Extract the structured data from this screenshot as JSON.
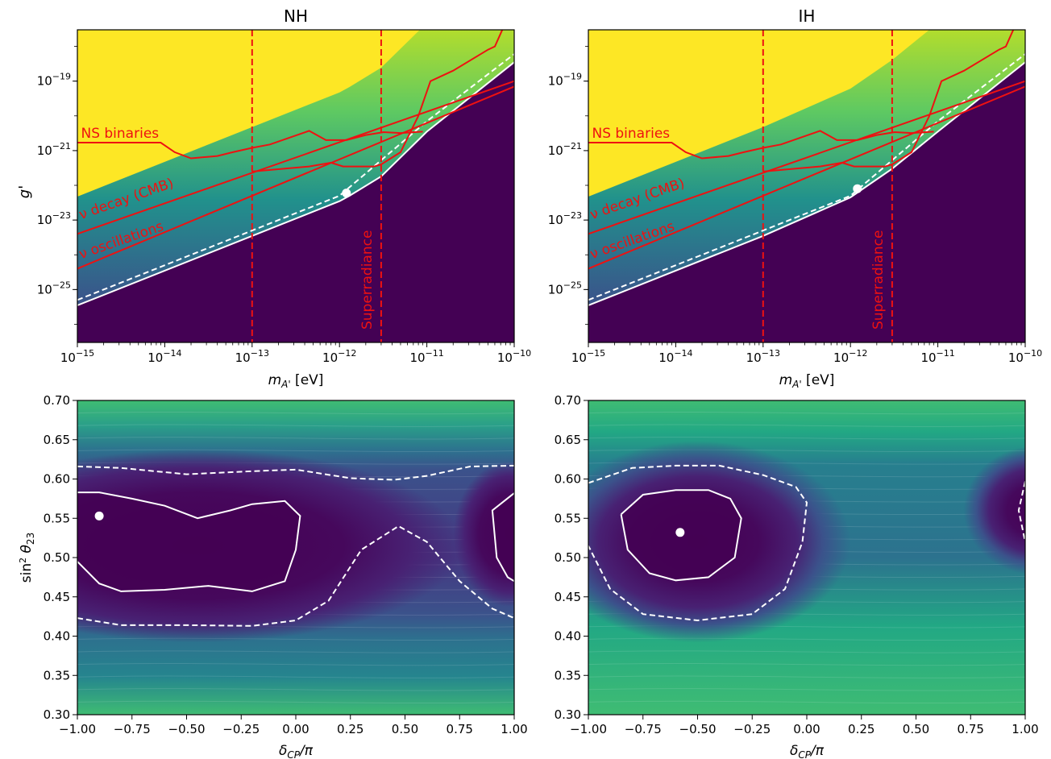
{
  "colors": {
    "yellow": "#fde725",
    "dark_purple": "#440154",
    "red": "#ee1111",
    "white": "#ffffff"
  },
  "chart_data": [
    {
      "type": "heatmap",
      "title": "NH",
      "xlabel": "m_A' [eV]",
      "ylabel": "g'",
      "xscale": "log",
      "yscale": "log",
      "xlim": [
        1e-15,
        1e-10
      ],
      "ylim": [
        3e-27,
        3e-18
      ],
      "xtick_labels": [
        "10^-15",
        "10^-14",
        "10^-13",
        "10^-12",
        "10^-11",
        "10^-10"
      ],
      "ytick_labels": [
        "10^-19",
        "10^-21",
        "10^-23",
        "10^-25"
      ],
      "boundary_solid": [
        [
          1e-15,
          3.5e-26
        ],
        [
          1e-13,
          3.5e-24
        ],
        [
          1e-12,
          3.5e-23
        ],
        [
          1.3e-12,
          5e-23
        ],
        [
          3e-12,
          1.8e-22
        ],
        [
          1e-11,
          3.5e-21
        ],
        [
          1e-10,
          3.5e-19
        ]
      ],
      "boundary_dashed": [
        [
          1e-15,
          5e-26
        ],
        [
          1e-13,
          5e-24
        ],
        [
          1e-12,
          5e-23
        ],
        [
          1e-11,
          7e-21
        ],
        [
          1e-10,
          6e-19
        ]
      ],
      "best_fit": [
        1.2e-12,
        6e-23
      ],
      "constraints": [
        {
          "label": "NS binaries",
          "points": [
            [
              1e-15,
              1.7e-21
            ],
            [
              9e-15,
              1.7e-21
            ],
            [
              1.3e-14,
              9e-22
            ],
            [
              2e-14,
              6e-22
            ],
            [
              4e-14,
              7e-22
            ],
            [
              6e-14,
              9e-22
            ],
            [
              1e-13,
              1.2e-21
            ],
            [
              1.6e-13,
              1.5e-21
            ],
            [
              4.5e-13,
              3.7e-21
            ],
            [
              7e-13,
              2e-21
            ],
            [
              1.2e-12,
              2e-21
            ],
            [
              2e-12,
              2.8e-21
            ],
            [
              3.2e-12,
              3.4e-21
            ],
            [
              5e-12,
              3.2e-21
            ],
            [
              9e-12,
              3.5e-21
            ]
          ]
        },
        {
          "label": "ν decay (CMB)",
          "points": [
            [
              1e-15,
              4e-24
            ],
            [
              1e-10,
              1e-19
            ]
          ]
        },
        {
          "label": "ν oscillations",
          "points": [
            [
              1e-15,
              4e-25
            ],
            [
              1e-10,
              7e-20
            ]
          ]
        },
        {
          "label": "",
          "points": [
            [
              1e-13,
              2.5e-22
            ],
            [
              4.5e-13,
              3.5e-22
            ],
            [
              8e-13,
              4.5e-22
            ],
            [
              1.1e-12,
              3.5e-22
            ],
            [
              1.7e-12,
              3.5e-22
            ],
            [
              2.5e-12,
              3.5e-22
            ],
            [
              3e-12,
              4e-22
            ],
            [
              5e-12,
              9e-22
            ],
            [
              8e-12,
              1e-20
            ],
            [
              1.1e-11,
              1e-19
            ],
            [
              2e-11,
              2e-19
            ],
            [
              5e-11,
              8e-19
            ],
            [
              6e-11,
              1e-18
            ],
            [
              8e-11,
              5e-18
            ]
          ]
        }
      ],
      "vertical_lines": [
        1e-13,
        3e-12
      ],
      "vertical_label": "Superradiance"
    },
    {
      "type": "heatmap",
      "title": "IH",
      "xlabel": "m_A' [eV]",
      "ylabel": "",
      "xscale": "log",
      "yscale": "log",
      "xlim": [
        1e-15,
        1e-10
      ],
      "ylim": [
        3e-27,
        3e-18
      ],
      "xtick_labels": [
        "10^-15",
        "10^-14",
        "10^-13",
        "10^-12",
        "10^-11",
        "10^-10"
      ],
      "ytick_labels": [
        "10^-19",
        "10^-21",
        "10^-23",
        "10^-25"
      ],
      "boundary_solid": [
        [
          1e-15,
          3.5e-26
        ],
        [
          1e-13,
          3.5e-24
        ],
        [
          1e-12,
          4.5e-23
        ],
        [
          3e-12,
          3e-22
        ],
        [
          1e-11,
          3.5e-21
        ],
        [
          1e-10,
          3.5e-19
        ]
      ],
      "boundary_dashed": [
        [
          1e-15,
          5e-26
        ],
        [
          1e-13,
          5e-24
        ],
        [
          1e-12,
          5e-23
        ],
        [
          1e-11,
          7e-21
        ],
        [
          1e-10,
          6e-19
        ]
      ],
      "best_fit": [
        1.2e-12,
        8e-23
      ],
      "constraints": [
        {
          "label": "NS binaries",
          "points": [
            [
              1e-15,
              1.7e-21
            ],
            [
              9e-15,
              1.7e-21
            ],
            [
              1.3e-14,
              9e-22
            ],
            [
              2e-14,
              6e-22
            ],
            [
              4e-14,
              7e-22
            ],
            [
              6e-14,
              9e-22
            ],
            [
              1e-13,
              1.2e-21
            ],
            [
              1.6e-13,
              1.5e-21
            ],
            [
              4.5e-13,
              3.7e-21
            ],
            [
              7e-13,
              2e-21
            ],
            [
              1.2e-12,
              2e-21
            ],
            [
              2e-12,
              2.8e-21
            ],
            [
              3.2e-12,
              3.4e-21
            ],
            [
              5e-12,
              3.2e-21
            ],
            [
              9e-12,
              3.5e-21
            ]
          ]
        },
        {
          "label": "ν decay (CMB)",
          "points": [
            [
              1e-15,
              4e-24
            ],
            [
              1e-10,
              1e-19
            ]
          ]
        },
        {
          "label": "ν oscillations",
          "points": [
            [
              1e-15,
              4e-25
            ],
            [
              1e-10,
              7e-20
            ]
          ]
        },
        {
          "label": "",
          "points": [
            [
              1e-13,
              2.5e-22
            ],
            [
              4.5e-13,
              3.5e-22
            ],
            [
              8e-13,
              4.5e-22
            ],
            [
              1.1e-12,
              3.5e-22
            ],
            [
              1.7e-12,
              3.5e-22
            ],
            [
              2.5e-12,
              3.5e-22
            ],
            [
              3e-12,
              4e-22
            ],
            [
              5e-12,
              9e-22
            ],
            [
              8e-12,
              1e-20
            ],
            [
              1.1e-11,
              1e-19
            ],
            [
              2e-11,
              2e-19
            ],
            [
              5e-11,
              8e-19
            ],
            [
              6e-11,
              1e-18
            ],
            [
              8e-11,
              5e-18
            ]
          ]
        }
      ],
      "vertical_lines": [
        1e-13,
        3e-12
      ],
      "vertical_label": "Superradiance"
    },
    {
      "type": "heatmap",
      "title": "",
      "xlabel": "δ_CP/π",
      "ylabel": "sin²θ₂₃",
      "xlim": [
        -1.0,
        1.0
      ],
      "ylim": [
        0.3,
        0.7
      ],
      "xticks": [
        "−1.00",
        "−0.75",
        "−0.50",
        "−0.25",
        "0.00",
        "0.25",
        "0.50",
        "0.75",
        "1.00"
      ],
      "yticks": [
        "0.70",
        "0.65",
        "0.60",
        "0.55",
        "0.50",
        "0.45",
        "0.40",
        "0.35",
        "0.30"
      ],
      "best_fit": [
        -0.9,
        0.553
      ],
      "contour_solid": [
        [
          [
            -1.0,
            0.495
          ],
          [
            -0.9,
            0.467
          ],
          [
            -0.8,
            0.457
          ],
          [
            -0.6,
            0.459
          ],
          [
            -0.4,
            0.464
          ],
          [
            -0.2,
            0.457
          ],
          [
            -0.05,
            0.47
          ],
          [
            0.0,
            0.51
          ],
          [
            0.02,
            0.553
          ],
          [
            -0.05,
            0.572
          ],
          [
            -0.2,
            0.568
          ],
          [
            -0.3,
            0.56
          ],
          [
            -0.45,
            0.55
          ],
          [
            -0.6,
            0.566
          ],
          [
            -0.75,
            0.575
          ],
          [
            -0.9,
            0.583
          ],
          [
            -1.0,
            0.583
          ]
        ],
        [
          [
            1.0,
            0.582
          ],
          [
            0.9,
            0.56
          ],
          [
            0.92,
            0.5
          ],
          [
            0.97,
            0.475
          ],
          [
            1.0,
            0.47
          ]
        ]
      ],
      "contour_dashed": [
        [
          [
            -1.0,
            0.616
          ],
          [
            -0.8,
            0.614
          ],
          [
            -0.5,
            0.606
          ],
          [
            -0.2,
            0.61
          ],
          [
            0.0,
            0.612
          ],
          [
            0.25,
            0.601
          ],
          [
            0.45,
            0.599
          ],
          [
            0.6,
            0.604
          ],
          [
            0.8,
            0.616
          ],
          [
            1.0,
            0.617
          ]
        ],
        [
          [
            -1.0,
            0.423
          ],
          [
            -0.8,
            0.414
          ],
          [
            -0.5,
            0.414
          ],
          [
            -0.2,
            0.413
          ],
          [
            0.0,
            0.42
          ],
          [
            0.15,
            0.445
          ],
          [
            0.3,
            0.51
          ],
          [
            0.47,
            0.54
          ],
          [
            0.6,
            0.52
          ],
          [
            0.75,
            0.47
          ],
          [
            0.9,
            0.435
          ],
          [
            1.0,
            0.423
          ]
        ]
      ]
    },
    {
      "type": "heatmap",
      "title": "",
      "xlabel": "δ_CP/π",
      "ylabel": "",
      "xlim": [
        -1.0,
        1.0
      ],
      "ylim": [
        0.3,
        0.7
      ],
      "xticks": [
        "−1.00",
        "−0.75",
        "−0.50",
        "−0.25",
        "0.00",
        "0.25",
        "0.50",
        "0.75",
        "1.00"
      ],
      "yticks": [
        "0.70",
        "0.65",
        "0.60",
        "0.55",
        "0.50",
        "0.45",
        "0.40",
        "0.35",
        "0.30"
      ],
      "best_fit": [
        -0.58,
        0.532
      ],
      "contour_solid": [
        [
          [
            -0.85,
            0.555
          ],
          [
            -0.75,
            0.58
          ],
          [
            -0.6,
            0.586
          ],
          [
            -0.45,
            0.586
          ],
          [
            -0.35,
            0.575
          ],
          [
            -0.3,
            0.55
          ],
          [
            -0.33,
            0.5
          ],
          [
            -0.45,
            0.475
          ],
          [
            -0.6,
            0.471
          ],
          [
            -0.72,
            0.48
          ],
          [
            -0.82,
            0.51
          ],
          [
            -0.85,
            0.555
          ]
        ]
      ],
      "contour_dashed": [
        [
          [
            -1.0,
            0.595
          ],
          [
            -0.8,
            0.614
          ],
          [
            -0.6,
            0.617
          ],
          [
            -0.4,
            0.617
          ],
          [
            -0.2,
            0.605
          ],
          [
            -0.05,
            0.59
          ],
          [
            0.0,
            0.57
          ],
          [
            -0.02,
            0.52
          ],
          [
            -0.1,
            0.46
          ],
          [
            -0.25,
            0.428
          ],
          [
            -0.5,
            0.42
          ],
          [
            -0.75,
            0.428
          ],
          [
            -0.9,
            0.46
          ],
          [
            -1.0,
            0.515
          ]
        ],
        [
          [
            1.0,
            0.597
          ],
          [
            0.97,
            0.56
          ],
          [
            1.0,
            0.52
          ]
        ]
      ]
    }
  ]
}
